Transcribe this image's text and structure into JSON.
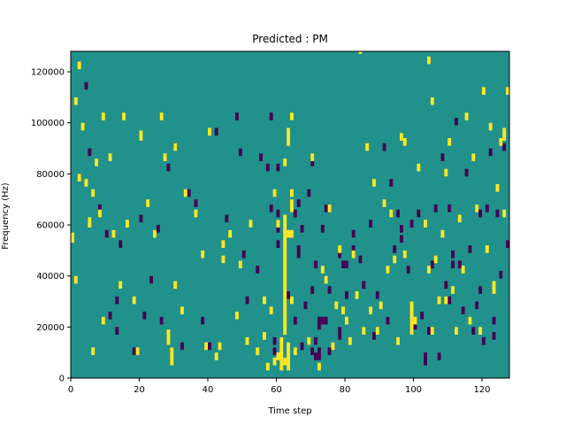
{
  "chart_data": {
    "type": "heatmap",
    "title": "Predicted : PM",
    "xlabel": "Time step",
    "ylabel": "Frequency (Hz)",
    "xlim": [
      0,
      128
    ],
    "ylim": [
      0,
      128000
    ],
    "xticks": [
      0,
      20,
      40,
      60,
      80,
      100,
      120
    ],
    "yticks": [
      0,
      20000,
      40000,
      60000,
      80000,
      100000,
      120000
    ],
    "cell_height_hz": 2000,
    "background_value": 0,
    "colormap": {
      "-1": "#440154",
      "0": "#21918c",
      "1": "#fde725"
    },
    "cells_high": [
      [
        2,
        121000,
        124000
      ],
      [
        1,
        107000,
        110000
      ],
      [
        3,
        97000,
        100000
      ],
      [
        4,
        75000,
        78000
      ],
      [
        0,
        53000,
        57000
      ],
      [
        1,
        37000,
        40000
      ],
      [
        5,
        59000,
        63000
      ],
      [
        6,
        71000,
        74000
      ],
      [
        6,
        9000,
        12000
      ],
      [
        7,
        83000,
        86000
      ],
      [
        8,
        63000,
        66000
      ],
      [
        9,
        101000,
        104000
      ],
      [
        9,
        21000,
        24000
      ],
      [
        11,
        85000,
        88000
      ],
      [
        12,
        55000,
        58000
      ],
      [
        14,
        35000,
        38000
      ],
      [
        15,
        101000,
        104000
      ],
      [
        16,
        59000,
        62000
      ],
      [
        18,
        29000,
        32000
      ],
      [
        19,
        9000,
        12000
      ],
      [
        20,
        93000,
        97000
      ],
      [
        22,
        67000,
        70000
      ],
      [
        24,
        55000,
        58000
      ],
      [
        26,
        101000,
        104000
      ],
      [
        27,
        85000,
        88000
      ],
      [
        28,
        13000,
        19000
      ],
      [
        29,
        5000,
        12000
      ],
      [
        30,
        89000,
        92000
      ],
      [
        32,
        25000,
        28000
      ],
      [
        33,
        71000,
        74000
      ],
      [
        36,
        63000,
        66000
      ],
      [
        38,
        47000,
        50000
      ],
      [
        39,
        11000,
        14000
      ],
      [
        40,
        95000,
        98000
      ],
      [
        42,
        7000,
        10000
      ],
      [
        43,
        11000,
        14000
      ],
      [
        44,
        51000,
        54000
      ],
      [
        46,
        55000,
        58000
      ],
      [
        48,
        23000,
        26000
      ],
      [
        49,
        43000,
        46000
      ],
      [
        51,
        13000,
        16000
      ],
      [
        52,
        59000,
        62000
      ],
      [
        54,
        9000,
        12000
      ],
      [
        56,
        29000,
        32000
      ],
      [
        56,
        15000,
        18000
      ],
      [
        57,
        3000,
        6000
      ],
      [
        58,
        25000,
        28000
      ],
      [
        59,
        71000,
        74000
      ],
      [
        60,
        59000,
        62000
      ],
      [
        60,
        7000,
        10000
      ],
      [
        61,
        3000,
        16000
      ],
      [
        62,
        17000,
        64000
      ],
      [
        63,
        3000,
        14000
      ],
      [
        62,
        83000,
        86000
      ],
      [
        63,
        91000,
        98000
      ],
      [
        64,
        71000,
        74000
      ],
      [
        64,
        65000,
        70000
      ],
      [
        65,
        9000,
        12000
      ],
      [
        64,
        29000,
        32000
      ],
      [
        69,
        13000,
        16000
      ],
      [
        70,
        85000,
        88000
      ],
      [
        72,
        3000,
        6000
      ],
      [
        74,
        37000,
        40000
      ],
      [
        75,
        65000,
        68000
      ],
      [
        76,
        11000,
        14000
      ],
      [
        77,
        27000,
        30000
      ],
      [
        78,
        49000,
        52000
      ],
      [
        79,
        25000,
        28000
      ],
      [
        80,
        21000,
        24000
      ],
      [
        81,
        13000,
        16000
      ],
      [
        82,
        47000,
        50000
      ],
      [
        83,
        31000,
        34000
      ],
      [
        84,
        127000,
        128000
      ],
      [
        85,
        17000,
        20000
      ],
      [
        86,
        89000,
        92000
      ],
      [
        87,
        25000,
        28000
      ],
      [
        88,
        75000,
        78000
      ],
      [
        89,
        17000,
        20000
      ],
      [
        90,
        27000,
        30000
      ],
      [
        91,
        67000,
        70000
      ],
      [
        92,
        41000,
        44000
      ],
      [
        93,
        63000,
        66000
      ],
      [
        94,
        45000,
        48000
      ],
      [
        95,
        13000,
        16000
      ],
      [
        96,
        93000,
        96000
      ],
      [
        97,
        91000,
        94000
      ],
      [
        100,
        21000,
        24000
      ],
      [
        101,
        81000,
        84000
      ],
      [
        103,
        59000,
        62000
      ],
      [
        104,
        41000,
        44000
      ],
      [
        105,
        17000,
        20000
      ],
      [
        106,
        45000,
        48000
      ],
      [
        107,
        29000,
        32000
      ],
      [
        108,
        55000,
        58000
      ],
      [
        109,
        79000,
        82000
      ],
      [
        110,
        91000,
        94000
      ],
      [
        111,
        33000,
        36000
      ],
      [
        112,
        17000,
        20000
      ],
      [
        113,
        61000,
        64000
      ],
      [
        114,
        41000,
        44000
      ],
      [
        115,
        101000,
        104000
      ],
      [
        116,
        21000,
        24000
      ],
      [
        117,
        85000,
        88000
      ],
      [
        118,
        65000,
        68000
      ],
      [
        119,
        17000,
        20000
      ],
      [
        120,
        111000,
        114000
      ],
      [
        121,
        49000,
        52000
      ],
      [
        122,
        97000,
        100000
      ],
      [
        123,
        33000,
        36000
      ],
      [
        124,
        73000,
        76000
      ],
      [
        125,
        91000,
        94000
      ],
      [
        126,
        63000,
        66000
      ],
      [
        126,
        93000,
        98000
      ],
      [
        127,
        111000,
        114000
      ],
      [
        2,
        77000,
        80000
      ],
      [
        104,
        123000,
        126000
      ],
      [
        30,
        35000,
        38000
      ],
      [
        44,
        45000,
        48000
      ],
      [
        99,
        17000,
        30000
      ],
      [
        109,
        29000,
        32000
      ],
      [
        97,
        47000,
        50000
      ],
      [
        105,
        107000,
        110000
      ],
      [
        123,
        35000,
        38000
      ],
      [
        73,
        41000,
        44000
      ],
      [
        64,
        55000,
        58000
      ],
      [
        63,
        55000,
        58000
      ],
      [
        59,
        5000,
        8000
      ],
      [
        62,
        5000,
        8000
      ],
      [
        64,
        101000,
        104000
      ]
    ],
    "cells_low": [
      [
        4,
        113000,
        116000
      ],
      [
        5,
        87000,
        90000
      ],
      [
        8,
        65000,
        68000
      ],
      [
        10,
        55000,
        58000
      ],
      [
        11,
        23000,
        26000
      ],
      [
        13,
        29000,
        32000
      ],
      [
        13,
        17000,
        20000
      ],
      [
        14,
        51000,
        54000
      ],
      [
        18,
        9000,
        12000
      ],
      [
        20,
        61000,
        64000
      ],
      [
        21,
        23000,
        26000
      ],
      [
        23,
        37000,
        40000
      ],
      [
        25,
        57000,
        60000
      ],
      [
        26,
        21000,
        24000
      ],
      [
        28,
        81000,
        84000
      ],
      [
        30,
        89000,
        92000
      ],
      [
        32,
        11000,
        14000
      ],
      [
        34,
        71000,
        74000
      ],
      [
        36,
        67000,
        70000
      ],
      [
        38,
        21000,
        24000
      ],
      [
        40,
        11000,
        14000
      ],
      [
        42,
        95000,
        98000
      ],
      [
        45,
        61000,
        64000
      ],
      [
        48,
        101000,
        104000
      ],
      [
        49,
        87000,
        90000
      ],
      [
        50,
        47000,
        50000
      ],
      [
        51,
        29000,
        32000
      ],
      [
        54,
        41000,
        44000
      ],
      [
        55,
        85000,
        88000
      ],
      [
        58,
        101000,
        104000
      ],
      [
        58,
        65000,
        68000
      ],
      [
        59,
        9000,
        12000
      ],
      [
        60,
        51000,
        54000
      ],
      [
        60,
        57000,
        60000
      ],
      [
        63,
        31000,
        34000
      ],
      [
        65,
        63000,
        66000
      ],
      [
        66,
        47000,
        52000
      ],
      [
        67,
        11000,
        14000
      ],
      [
        67,
        57000,
        60000
      ],
      [
        68,
        27000,
        30000
      ],
      [
        69,
        71000,
        74000
      ],
      [
        70,
        83000,
        86000
      ],
      [
        71,
        43000,
        46000
      ],
      [
        72,
        7000,
        12000
      ],
      [
        72,
        19000,
        24000
      ],
      [
        73,
        57000,
        60000
      ],
      [
        74,
        21000,
        24000
      ],
      [
        75,
        33000,
        36000
      ],
      [
        76,
        11000,
        14000
      ],
      [
        78,
        15000,
        20000
      ],
      [
        79,
        43000,
        46000
      ],
      [
        80,
        31000,
        34000
      ],
      [
        82,
        55000,
        58000
      ],
      [
        84,
        45000,
        48000
      ],
      [
        85,
        35000,
        38000
      ],
      [
        87,
        59000,
        62000
      ],
      [
        88,
        15000,
        18000
      ],
      [
        89,
        31000,
        34000
      ],
      [
        91,
        89000,
        92000
      ],
      [
        92,
        21000,
        24000
      ],
      [
        93,
        75000,
        78000
      ],
      [
        94,
        49000,
        52000
      ],
      [
        95,
        63000,
        66000
      ],
      [
        96,
        57000,
        60000
      ],
      [
        98,
        41000,
        44000
      ],
      [
        99,
        59000,
        62000
      ],
      [
        100,
        19000,
        22000
      ],
      [
        101,
        63000,
        66000
      ],
      [
        102,
        23000,
        26000
      ],
      [
        103,
        5000,
        10000
      ],
      [
        104,
        17000,
        20000
      ],
      [
        105,
        43000,
        46000
      ],
      [
        106,
        65000,
        68000
      ],
      [
        107,
        7000,
        10000
      ],
      [
        108,
        85000,
        88000
      ],
      [
        109,
        35000,
        38000
      ],
      [
        110,
        65000,
        68000
      ],
      [
        111,
        47000,
        50000
      ],
      [
        112,
        99000,
        102000
      ],
      [
        113,
        43000,
        46000
      ],
      [
        114,
        25000,
        28000
      ],
      [
        115,
        79000,
        82000
      ],
      [
        116,
        49000,
        52000
      ],
      [
        117,
        17000,
        20000
      ],
      [
        118,
        27000,
        30000
      ],
      [
        119,
        33000,
        36000
      ],
      [
        120,
        13000,
        16000
      ],
      [
        121,
        65000,
        68000
      ],
      [
        122,
        87000,
        90000
      ],
      [
        123,
        21000,
        24000
      ],
      [
        124,
        63000,
        66000
      ],
      [
        125,
        39000,
        42000
      ],
      [
        126,
        89000,
        92000
      ],
      [
        127,
        51000,
        54000
      ],
      [
        70,
        9000,
        12000
      ],
      [
        71,
        7000,
        10000
      ],
      [
        60,
        63000,
        66000
      ],
      [
        96,
        53000,
        56000
      ],
      [
        123,
        15000,
        18000
      ],
      [
        119,
        63000,
        66000
      ],
      [
        74,
        65000,
        68000
      ],
      [
        60,
        81000,
        84000
      ],
      [
        78,
        47000,
        50000
      ],
      [
        82,
        49000,
        52000
      ],
      [
        110,
        29000,
        32000
      ],
      [
        57,
        81000,
        84000
      ],
      [
        59,
        13000,
        16000
      ],
      [
        61,
        11000,
        14000
      ],
      [
        65,
        21000,
        24000
      ],
      [
        71,
        13000,
        16000
      ],
      [
        73,
        21000,
        24000
      ],
      [
        75,
        9000,
        12000
      ],
      [
        80,
        43000,
        46000
      ],
      [
        66,
        67000,
        70000
      ],
      [
        70,
        33000,
        36000
      ],
      [
        111,
        43000,
        46000
      ]
    ]
  }
}
